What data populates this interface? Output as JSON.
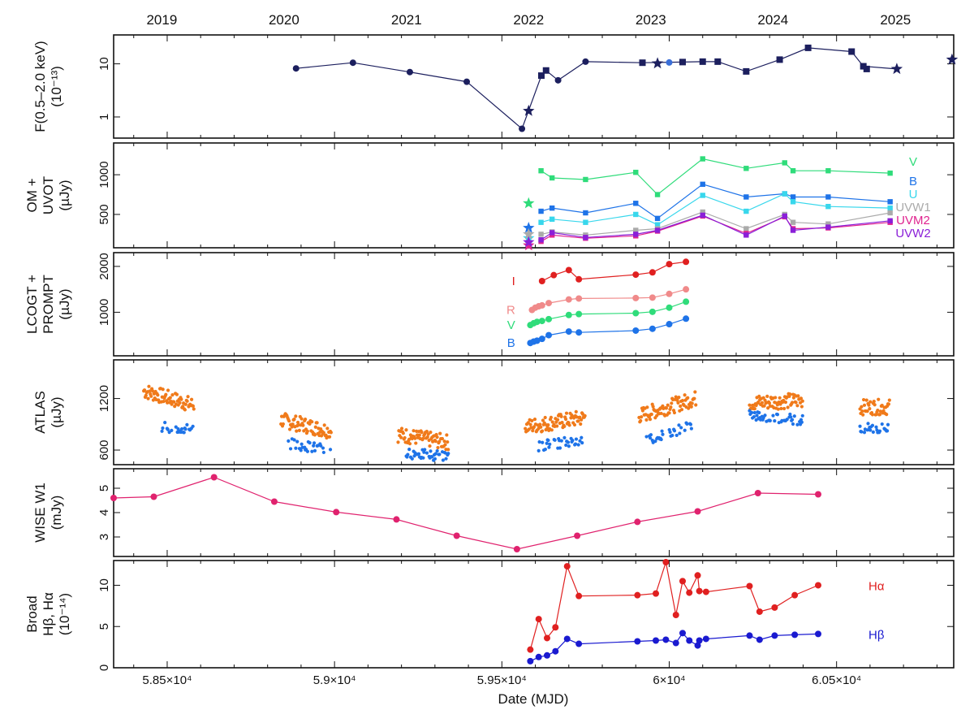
{
  "figure": {
    "top_labels": [
      "2019",
      "2020",
      "2021",
      "2022",
      "2023",
      "2024",
      "2025"
    ],
    "top_label_mjd": [
      58484,
      58849,
      59215,
      59580,
      59945,
      60310,
      60676
    ],
    "xlabel": "Date (MJD)",
    "x_tick_labels": [
      "5.85×10⁴",
      "5.9×10⁴",
      "5.95×10⁴",
      "6×10⁴",
      "6.05×10⁴"
    ],
    "x_ticks": [
      58500,
      59000,
      59500,
      60000,
      60500
    ],
    "xlim": [
      58340,
      60850
    ]
  },
  "chart_data": [
    {
      "type": "line",
      "ylabel_lines": [
        "F(0.5–2.0 keV)",
        "(10⁻¹³)"
      ],
      "yscale": "log",
      "ylim": [
        0.4,
        35
      ],
      "y_ticks": [
        1,
        10
      ],
      "y_tick_labels": [
        "1",
        "10"
      ],
      "series": [
        {
          "color": "#1c1f5e",
          "x": [
            58885,
            59055,
            59225,
            59395,
            59560,
            59618,
            59632,
            59668,
            59750,
            59920,
            60040,
            60100,
            60145,
            60230,
            60330,
            60415,
            60545,
            60580,
            60680
          ],
          "y": [
            8.2,
            10.5,
            7.0,
            4.6,
            0.6,
            6.0,
            7.5,
            4.9,
            11.0,
            10.5,
            10.8,
            11.0,
            11.0,
            7.2,
            12.0,
            20.0,
            17.0,
            9.0,
            8.0
          ],
          "markers": [
            "circle",
            "circle",
            "circle",
            "circle",
            "circle",
            "square",
            "square",
            "circle",
            "circle",
            "square",
            "square",
            "square",
            "square",
            "square",
            "square",
            "square",
            "square",
            "square",
            "star"
          ]
        }
      ],
      "extra_points": [
        {
          "x": 59580,
          "y": 1.3,
          "marker": "star",
          "color": "#1c1f5e"
        },
        {
          "x": 59965,
          "y": 10.2,
          "marker": "star",
          "color": "#1c1f5e"
        },
        {
          "x": 60000,
          "y": 10.6,
          "marker": "circle",
          "color": "#3a6fd8"
        },
        {
          "x": 60590,
          "y": 8.0,
          "marker": "square",
          "color": "#1c1f5e"
        },
        {
          "x": 60845,
          "y": 12.0,
          "marker": "star",
          "color": "#1c1f5e"
        }
      ]
    },
    {
      "type": "line",
      "ylabel_lines": [
        "OM +",
        "UVOT",
        "(µJy)"
      ],
      "ylim": [
        80,
        1400
      ],
      "y_ticks": [
        500,
        1000
      ],
      "y_tick_labels": [
        "500",
        "1000"
      ],
      "series": [
        {
          "name": "V",
          "color": "#2fdc7a",
          "x": [
            59617,
            59650,
            59750,
            59900,
            59965,
            60100,
            60230,
            60345,
            60370,
            60475,
            60660
          ],
          "y": [
            1050,
            960,
            940,
            1030,
            750,
            1200,
            1080,
            1150,
            1050,
            1050,
            1020
          ]
        },
        {
          "name": "B",
          "color": "#1e73e8",
          "x": [
            59617,
            59650,
            59750,
            59900,
            59965,
            60100,
            60230,
            60345,
            60370,
            60475,
            60660
          ],
          "y": [
            540,
            580,
            520,
            640,
            450,
            880,
            720,
            760,
            720,
            720,
            660
          ]
        },
        {
          "name": "U",
          "color": "#38d7ec",
          "x": [
            59617,
            59650,
            59750,
            59900,
            59965,
            60100,
            60230,
            60345,
            60370,
            60475,
            60660
          ],
          "y": [
            400,
            440,
            400,
            500,
            370,
            740,
            540,
            760,
            660,
            600,
            580
          ]
        },
        {
          "name": "UVW1",
          "color": "#aaaaaa",
          "x": [
            59617,
            59650,
            59750,
            59900,
            59965,
            60100,
            60230,
            60345,
            60370,
            60475,
            60660
          ],
          "y": [
            250,
            280,
            240,
            300,
            320,
            530,
            320,
            500,
            400,
            380,
            520
          ]
        },
        {
          "name": "UVM2",
          "color": "#e0238f",
          "x": [
            59617,
            59650,
            59750,
            59900,
            59965,
            60100,
            60230,
            60345,
            60370,
            60475,
            60660
          ],
          "y": [
            160,
            240,
            200,
            230,
            290,
            480,
            260,
            470,
            320,
            330,
            400
          ]
        },
        {
          "name": "UVW2",
          "color": "#8a1fd8",
          "x": [
            59617,
            59650,
            59750,
            59900,
            59965,
            60100,
            60230,
            60345,
            60370,
            60475,
            60660
          ],
          "y": [
            180,
            270,
            210,
            250,
            300,
            490,
            240,
            480,
            300,
            340,
            420
          ]
        }
      ]
    },
    {
      "type": "line",
      "ylabel_lines": [
        "LCOGT +",
        "PROMPT",
        "(µJy)"
      ],
      "ylim": [
        50,
        2300
      ],
      "y_ticks": [
        1000,
        2000
      ],
      "y_tick_labels": [
        "1000",
        "2000"
      ],
      "series": [
        {
          "name": "I",
          "color": "#e02020",
          "x": [
            59620,
            59655,
            59700,
            59730,
            59900,
            59950,
            60000,
            60050
          ],
          "y": [
            1680,
            1810,
            1920,
            1720,
            1820,
            1870,
            2050,
            2100
          ]
        },
        {
          "name": "R",
          "color": "#f08a8a",
          "x": [
            59590,
            59600,
            59610,
            59620,
            59640,
            59700,
            59730,
            59900,
            59950,
            60000,
            60050
          ],
          "y": [
            1050,
            1100,
            1130,
            1150,
            1200,
            1280,
            1300,
            1310,
            1320,
            1400,
            1500
          ]
        },
        {
          "name": "V",
          "color": "#2fdc7a",
          "x": [
            59585,
            59595,
            59605,
            59620,
            59640,
            59700,
            59730,
            59900,
            59950,
            60000,
            60050
          ],
          "y": [
            720,
            760,
            790,
            810,
            850,
            940,
            960,
            980,
            1010,
            1100,
            1230
          ]
        },
        {
          "name": "B",
          "color": "#1e73e8",
          "x": [
            59585,
            59595,
            59605,
            59620,
            59640,
            59700,
            59730,
            59900,
            59950,
            60000,
            60050
          ],
          "y": [
            330,
            360,
            380,
            420,
            500,
            580,
            560,
            600,
            640,
            740,
            860
          ]
        }
      ]
    },
    {
      "type": "scatter",
      "ylabel_lines": [
        "ATLAS",
        "(µJy)"
      ],
      "ylim": [
        430,
        1650
      ],
      "y_ticks": [
        600,
        1200
      ],
      "y_tick_labels": [
        "600",
        "1200"
      ],
      "series": [
        {
          "color": "#f07a1a",
          "seasons": [
            [
              58430,
              58580,
              1290,
              1120
            ],
            [
              58840,
              58990,
              950,
              820
            ],
            [
              59190,
              59340,
              780,
              690
            ],
            [
              59570,
              59750,
              870,
              980
            ],
            [
              59910,
              60080,
              1000,
              1200
            ],
            [
              60240,
              60400,
              1150,
              1180
            ],
            [
              60570,
              60660,
              1100,
              1100
            ]
          ],
          "noise": 90
        },
        {
          "color": "#1e73e8",
          "seasons": [
            [
              58480,
              58580,
              880,
              830
            ],
            [
              58860,
              58990,
              680,
              600
            ],
            [
              59210,
              59340,
              560,
              530
            ],
            [
              59610,
              59750,
              650,
              720
            ],
            [
              59930,
              60080,
              720,
              900
            ],
            [
              60240,
              60400,
              1000,
              950
            ],
            [
              60570,
              60660,
              850,
              850
            ]
          ],
          "noise": 60
        }
      ]
    },
    {
      "type": "line",
      "ylabel_lines": [
        "WISE W1",
        "(mJy)"
      ],
      "ylim": [
        2.2,
        5.8
      ],
      "y_ticks": [
        3,
        4,
        5
      ],
      "y_tick_labels": [
        "3",
        "4",
        "5"
      ],
      "series": [
        {
          "color": "#e0226e",
          "x": [
            58340,
            58460,
            58640,
            58820,
            59005,
            59185,
            59365,
            59545,
            59725,
            59905,
            60085,
            60265,
            60445
          ],
          "y": [
            4.6,
            4.65,
            5.45,
            4.45,
            4.02,
            3.72,
            3.05,
            2.5,
            3.05,
            3.62,
            4.05,
            4.8,
            4.75
          ]
        }
      ]
    },
    {
      "type": "line",
      "ylabel_lines": [
        "Broad",
        "Hβ, Hα",
        "(10⁻¹⁴)"
      ],
      "ylim": [
        0,
        13
      ],
      "y_ticks": [
        0,
        5,
        10
      ],
      "y_tick_labels": [
        "0",
        "5",
        "10"
      ],
      "series": [
        {
          "name": "Hα",
          "color": "#e02020",
          "x": [
            59585,
            59610,
            59635,
            59660,
            59695,
            59730,
            59905,
            59960,
            59990,
            60020,
            60040,
            60060,
            60085,
            60090,
            60110,
            60240,
            60270,
            60315,
            60375,
            60445
          ],
          "y": [
            2.2,
            5.9,
            3.6,
            4.9,
            12.3,
            8.7,
            8.8,
            9.0,
            12.8,
            6.4,
            10.5,
            9.1,
            11.2,
            9.3,
            9.2,
            9.9,
            6.8,
            7.3,
            8.8,
            10.0
          ]
        },
        {
          "name": "Hβ",
          "color": "#1a1ad0",
          "x": [
            59585,
            59610,
            59635,
            59660,
            59695,
            59730,
            59905,
            59960,
            59990,
            60020,
            60040,
            60060,
            60085,
            60090,
            60110,
            60240,
            60270,
            60315,
            60375,
            60445
          ],
          "y": [
            0.8,
            1.3,
            1.5,
            2.0,
            3.5,
            2.9,
            3.2,
            3.3,
            3.4,
            3.0,
            4.2,
            3.3,
            2.7,
            3.3,
            3.5,
            3.9,
            3.4,
            3.9,
            4.0,
            4.1
          ]
        }
      ]
    }
  ]
}
